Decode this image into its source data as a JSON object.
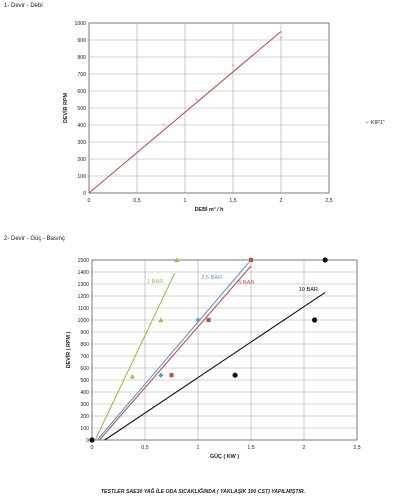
{
  "section1_title": "1- Devir - Debi",
  "section2_title": "2- Devir - Güç - Basınç",
  "footer_note": "TESTLER SAE30 YAĞ İLE ODA SICAKLIĞINDA ( YAKLAŞIK 100 CST) YAPILMIŞTIR.",
  "chart_data": [
    {
      "type": "scatter",
      "title": "",
      "xlabel": "DEBİ m³ / h",
      "ylabel": "DEVİR RPM",
      "xlim": [
        0,
        2.5
      ],
      "ylim": [
        0,
        1000
      ],
      "x_ticks": [
        "0",
        "0,5",
        "1",
        "1,5",
        "2",
        "2,5"
      ],
      "y_ticks": [
        "0",
        "100",
        "200",
        "300",
        "400",
        "500",
        "600",
        "700",
        "800",
        "900",
        "1000"
      ],
      "grid": true,
      "legend": "right",
      "series": [
        {
          "name": "KIP1\"",
          "color": "#c0504d",
          "marker_color": "#8fa0b5",
          "points": [
            [
              0.42,
              200
            ],
            [
              0.78,
              400
            ],
            [
              1.12,
              545
            ],
            [
              1.5,
              750
            ],
            [
              2.0,
              910
            ]
          ],
          "trendline": [
            [
              0,
              0
            ],
            [
              2.0,
              950
            ]
          ]
        }
      ]
    },
    {
      "type": "scatter",
      "title": "",
      "xlabel": "GÜÇ ( KW )",
      "ylabel": "DEVİR ( RPM )",
      "xlim": [
        0,
        2.5
      ],
      "ylim": [
        0,
        1500
      ],
      "x_ticks": [
        "0",
        "0,5",
        "1",
        "1,5",
        "2",
        "2,5"
      ],
      "y_ticks": [
        "0",
        "100",
        "200",
        "300",
        "400",
        "500",
        "600",
        "700",
        "800",
        "900",
        "1000",
        "1100",
        "1200",
        "1300",
        "1400",
        "1500"
      ],
      "grid": true,
      "legend": "inline",
      "series": [
        {
          "name": "1 BAR",
          "color": "#8cc63f",
          "marker": "triangle",
          "points": [
            [
              0,
              0
            ],
            [
              0.38,
              530
            ],
            [
              0.65,
              1000
            ],
            [
              0.8,
              1500
            ]
          ],
          "trendline": [
            [
              0.03,
              0
            ],
            [
              0.78,
              1390
            ]
          ],
          "label_at": [
            0.52,
            1310
          ]
        },
        {
          "name": "2,5 BAR",
          "color": "#5a9bd5",
          "marker": "diamond",
          "points": [
            [
              0,
              0
            ],
            [
              0.65,
              540
            ],
            [
              1.0,
              1000
            ],
            [
              1.5,
              1500
            ]
          ],
          "trendline": [
            [
              0.05,
              0
            ],
            [
              1.48,
              1480
            ]
          ],
          "label_at": [
            1.03,
            1340
          ]
        },
        {
          "name": "5 BAR",
          "color": "#c0504d",
          "marker": "square",
          "points": [
            [
              0,
              0
            ],
            [
              0.75,
              540
            ],
            [
              1.1,
              1000
            ],
            [
              1.5,
              1500
            ]
          ],
          "trendline": [
            [
              0.07,
              0
            ],
            [
              1.5,
              1450
            ]
          ],
          "label_at": [
            1.38,
            1300
          ]
        },
        {
          "name": "10 BAR",
          "color": "#111111",
          "marker": "circle",
          "points": [
            [
              0,
              0
            ],
            [
              1.35,
              540
            ],
            [
              2.1,
              1000
            ],
            [
              2.2,
              1500
            ]
          ],
          "trendline": [
            [
              0.12,
              0
            ],
            [
              2.2,
              1230
            ]
          ],
          "label_at": [
            1.95,
            1240
          ]
        }
      ]
    }
  ]
}
